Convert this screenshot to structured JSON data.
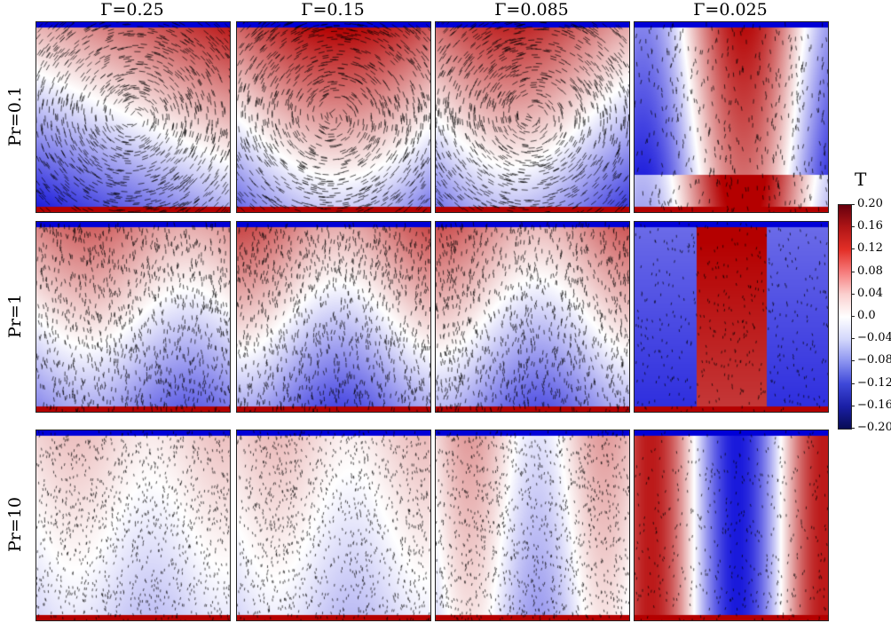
{
  "column_headers": [
    "Γ=0.25",
    "Γ=0.15",
    "Γ=0.085",
    "Γ=0.025"
  ],
  "row_headers": [
    "Pr=0.1",
    "Pr=1",
    "Pr=10"
  ],
  "colorbar": {
    "title": "T",
    "ticks": [
      "0.20",
      "0.16",
      "0.12",
      "0.08",
      "0.04",
      "0.0",
      "−0.04",
      "−0.08",
      "−0.12",
      "−0.16",
      "−0.20"
    ],
    "max_value": 0.2,
    "min_value": -0.2
  },
  "colors": {
    "hot": "#c00000",
    "cold": "#0a0ad0",
    "neutral": "#ffffff",
    "arrows": "#000000"
  }
}
